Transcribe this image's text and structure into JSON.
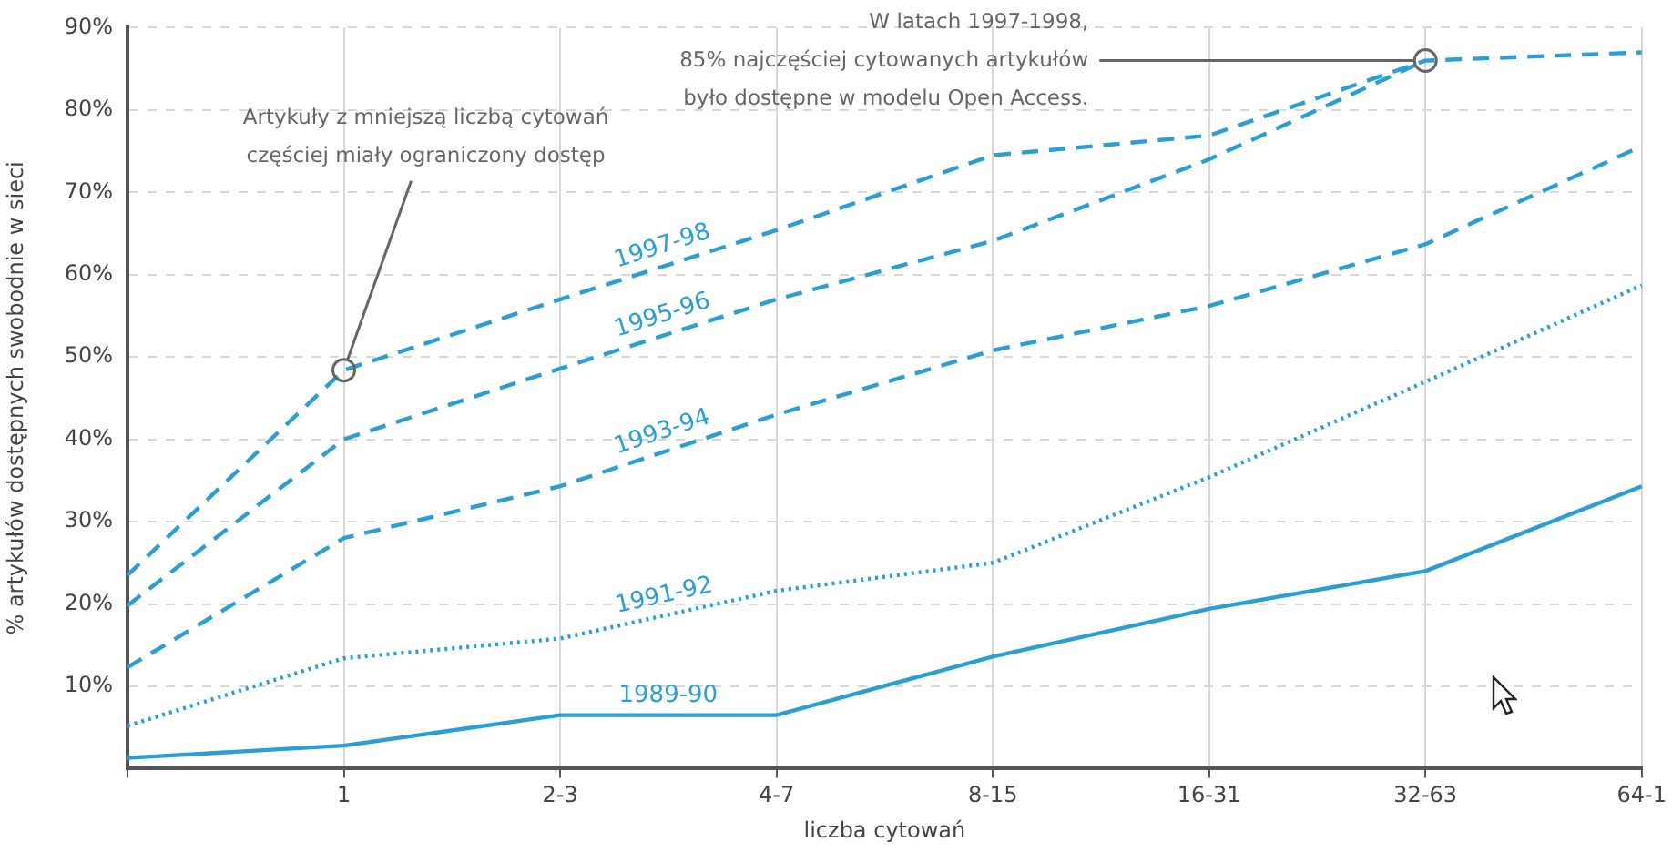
{
  "chart_data": {
    "type": "line",
    "xlabel": "liczba cytowań",
    "ylabel": "% artykułów dostępnych swobodnie w sieci",
    "categories": [
      null,
      "1",
      "2-3",
      "4-7",
      "8-15",
      "16-31",
      "32-63",
      "64-1"
    ],
    "series": [
      {
        "name": "1989-90",
        "color": "#2a9fd6",
        "line_style": "solid",
        "values": [
          1.3,
          2.8,
          6.5,
          6.5,
          13.6,
          19.4,
          24,
          34.3
        ]
      },
      {
        "name": "1991-92",
        "color": "#2a9fd6",
        "line_style": "dotted",
        "values": [
          5.2,
          13.4,
          15.8,
          21.6,
          25,
          35.4,
          47,
          58.7
        ]
      },
      {
        "name": "1993-94",
        "color": "#2a9fd6",
        "line_style": "dashed",
        "values": [
          12.3,
          28,
          34.3,
          43,
          50.8,
          56.2,
          63.7,
          75.6
        ]
      },
      {
        "name": "1995-96",
        "color": "#2a9fd6",
        "line_style": "dashed",
        "values": [
          19.8,
          40,
          48.6,
          57,
          64.1,
          74,
          86,
          null
        ]
      },
      {
        "name": "1997-98",
        "color": "#2a9fd6",
        "line_style": "dashed",
        "values": [
          23.5,
          48.4,
          57,
          65.4,
          74.5,
          76.9,
          86,
          87
        ]
      }
    ],
    "ylim": [
      0,
      90
    ],
    "yticks": [
      {
        "value": 10,
        "label": "10%"
      },
      {
        "value": 20,
        "label": "20%"
      },
      {
        "value": 30,
        "label": "30%"
      },
      {
        "value": 40,
        "label": "40%"
      },
      {
        "value": 50,
        "label": "50%"
      },
      {
        "value": 60,
        "label": "60%"
      },
      {
        "value": 70,
        "label": "70%"
      },
      {
        "value": 80,
        "label": "80%"
      },
      {
        "value": 90,
        "label": "90%"
      }
    ],
    "grid": true,
    "legend": false,
    "marker": "none",
    "annotations": [
      {
        "text": "Artykuły z mniejszą liczbą cytowań\nczęściej miały ograniczony dostęp",
        "x": "1",
        "y": 48.4
      },
      {
        "text": "W latach 1997-1998,\n85% najczęściej cytowanych artykułów\nbyło dostępne w modelu Open Access.",
        "x": "32-63",
        "y": 86
      }
    ]
  }
}
